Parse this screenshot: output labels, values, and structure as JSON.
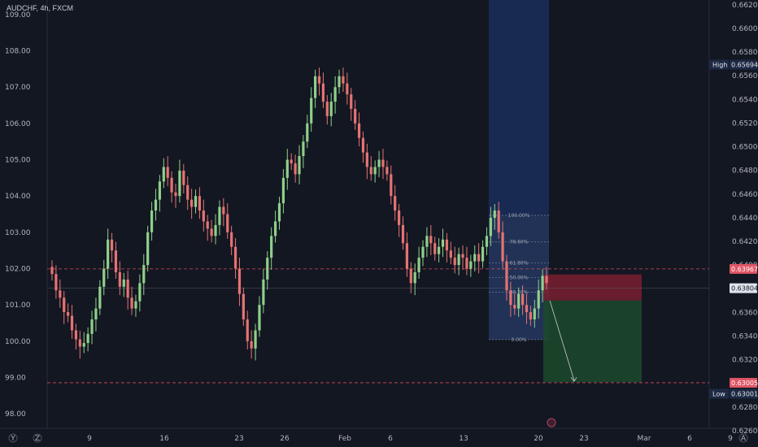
{
  "header": {
    "symbol": "AUDCHF, 4h, FXCM"
  },
  "bottom_bar": {
    "log_label": "Y",
    "zoom_label": "Z",
    "auto_label": "A"
  },
  "colors": {
    "background": "#131722",
    "up": "#8fd08a",
    "down": "#e57373",
    "level_line": "#d94a55",
    "fib_band": "#1f3a7a",
    "stop_zone": "#7a1f2e",
    "target_zone": "#1c4a2b"
  },
  "chart_data": {
    "type": "candlestick",
    "title": "AUDCHF, 4h, FXCM",
    "left_axis": {
      "ticks": [
        "109.00",
        "108.00",
        "107.00",
        "106.00",
        "105.00",
        "104.00",
        "103.00",
        "102.00",
        "101.00",
        "100.00",
        "99.00",
        "98.00"
      ],
      "range": [
        97.6,
        109.4
      ]
    },
    "right_axis": {
      "ticks": [
        "0.66200",
        "0.66000",
        "0.65800",
        "0.65600",
        "0.65400",
        "0.65200",
        "0.65000",
        "0.64800",
        "0.64600",
        "0.64400",
        "0.64200",
        "0.64000",
        "0.63800",
        "0.63600",
        "0.63400",
        "0.63200",
        "0.63000",
        "0.62800",
        "0.62600"
      ],
      "range": [
        0.6262,
        0.6624
      ]
    },
    "x_axis": {
      "ticks": [
        "9",
        "16",
        "23",
        "26",
        "Feb",
        "6",
        "13",
        "20",
        "23",
        "Mar",
        "6",
        "9"
      ]
    },
    "price_tags": [
      {
        "label": "",
        "value": "0.63967",
        "style": "resistance"
      },
      {
        "label": "",
        "value": "0.63804",
        "style": "current"
      },
      {
        "label": "",
        "value": "0.63005",
        "style": "support"
      },
      {
        "label": "High",
        "value": "0.65694",
        "style": "high"
      },
      {
        "label": "Low",
        "value": "0.63001",
        "style": "low"
      }
    ],
    "levels": [
      0.63967,
      0.63005
    ],
    "current_price": 0.63804,
    "fibonacci": {
      "high": 0.6442,
      "low": 0.6337,
      "labels": [
        "100.00%",
        "78.60%",
        "61.80%",
        "50.00%",
        "38.20%",
        "0.00%"
      ],
      "ratios": [
        1.0,
        0.786,
        0.618,
        0.5,
        0.382,
        0.0
      ]
    },
    "position": {
      "entry": 0.637,
      "stop": 0.6392,
      "target": 0.6301
    },
    "series_closes": [
      101.85,
      101.4,
      101.2,
      100.8,
      100.7,
      100.3,
      100.05,
      99.85,
      99.95,
      100.2,
      100.6,
      100.9,
      101.5,
      102.0,
      102.8,
      102.5,
      101.9,
      101.5,
      101.7,
      101.2,
      100.9,
      101.1,
      101.6,
      102.1,
      103.0,
      103.6,
      103.9,
      104.4,
      104.8,
      104.5,
      104.1,
      104.0,
      104.7,
      104.3,
      103.9,
      103.7,
      104.0,
      103.6,
      103.3,
      103.1,
      102.9,
      103.2,
      103.7,
      103.5,
      103.0,
      102.6,
      102.0,
      101.3,
      100.6,
      100.0,
      99.8,
      100.3,
      101.0,
      101.7,
      102.3,
      102.9,
      103.3,
      103.8,
      104.5,
      105.0,
      104.9,
      104.6,
      105.1,
      105.5,
      106.0,
      106.7,
      107.3,
      107.1,
      106.6,
      106.2,
      106.6,
      107.0,
      107.3,
      107.1,
      106.8,
      106.4,
      106.0,
      105.6,
      105.2,
      104.8,
      104.6,
      104.8,
      105.0,
      104.8,
      104.6,
      104.0,
      103.6,
      103.2,
      102.7,
      102.0,
      101.6,
      101.9,
      102.3,
      102.6,
      102.9,
      102.7,
      102.4,
      102.6,
      102.8,
      102.5,
      102.3,
      102.1,
      102.4,
      102.3,
      102.0,
      102.2,
      102.4,
      102.2,
      102.6,
      102.9,
      103.4,
      103.6,
      103.0,
      102.2,
      101.4,
      101.0,
      100.9,
      101.3,
      101.0,
      100.8,
      100.6,
      100.9,
      101.4,
      101.8,
      101.6
    ]
  }
}
